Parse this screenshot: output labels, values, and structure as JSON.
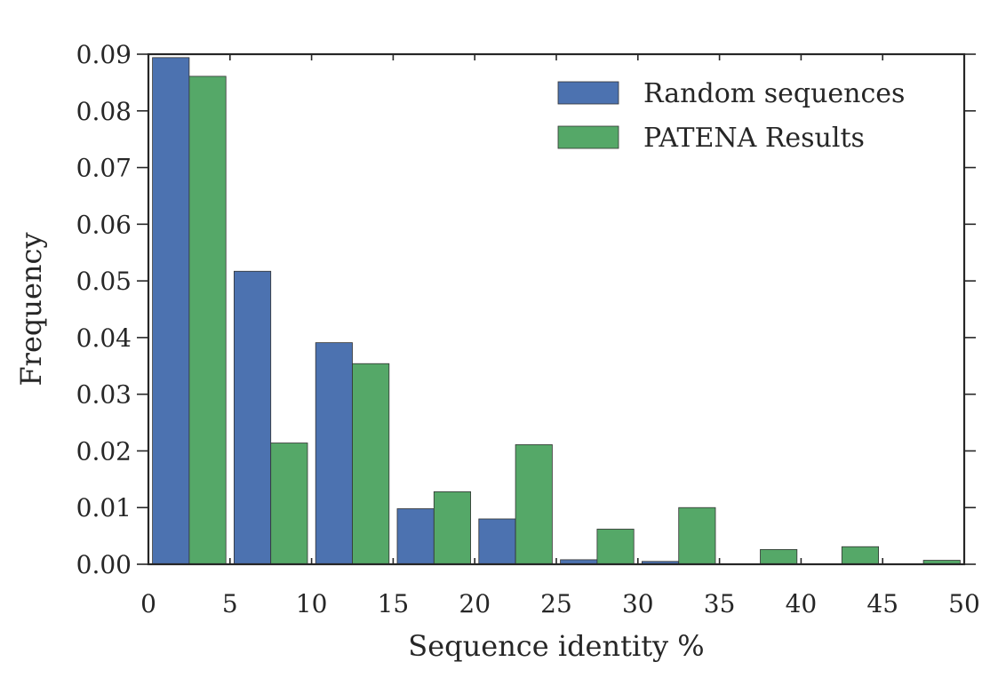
{
  "chart_data": {
    "type": "bar",
    "xlabel": "Sequence identity %",
    "ylabel": "Frequency",
    "xlim": [
      0,
      50
    ],
    "ylim": [
      0,
      0.09
    ],
    "x_ticks": [
      "0",
      "5",
      "10",
      "15",
      "20",
      "25",
      "30",
      "35",
      "40",
      "45",
      "50"
    ],
    "y_ticks": [
      "0.00",
      "0.01",
      "0.02",
      "0.03",
      "0.04",
      "0.05",
      "0.06",
      "0.07",
      "0.08",
      "0.09"
    ],
    "bin_width": 5,
    "bin_starts": [
      0,
      5,
      10,
      15,
      20,
      25,
      30,
      35,
      40,
      45
    ],
    "legend_position": "top-right",
    "grid": false,
    "series": [
      {
        "name": "Random sequences",
        "color": "#4c72b0",
        "values": [
          0.0894,
          0.0517,
          0.0391,
          0.0098,
          0.008,
          0.0008,
          0.0005,
          0.0,
          0.0,
          0.0
        ]
      },
      {
        "name": "PATENA Results",
        "color": "#55a868",
        "values": [
          0.0861,
          0.0214,
          0.0354,
          0.0128,
          0.0211,
          0.0062,
          0.01,
          0.0026,
          0.0031,
          0.0007
        ]
      }
    ]
  }
}
